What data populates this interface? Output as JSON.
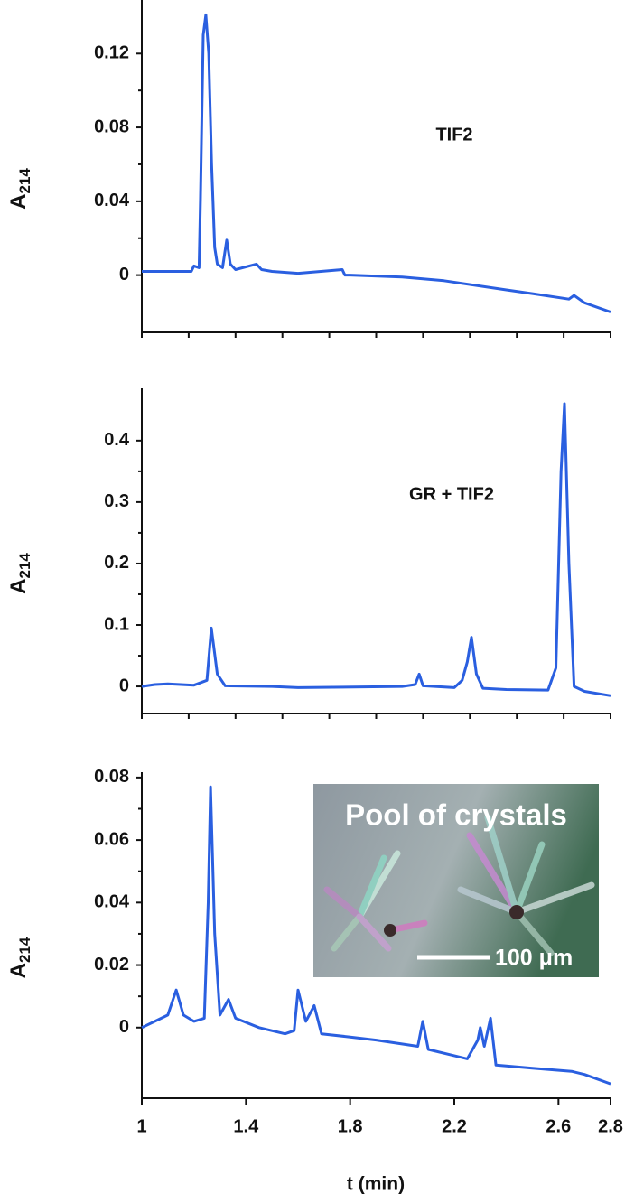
{
  "chart_data": [
    {
      "type": "line",
      "ylabel": "A",
      "ylabel_subscript": "214",
      "annotation": "TIF2",
      "xlim": [
        1,
        2.8
      ],
      "ylim": [
        -0.031,
        0.149
      ],
      "yticks": [
        0,
        0.04,
        0.08,
        0.12
      ],
      "x": [
        1.0,
        1.19,
        1.2,
        1.22,
        1.225,
        1.236,
        1.246,
        1.257,
        1.268,
        1.28,
        1.29,
        1.31,
        1.326,
        1.34,
        1.36,
        1.44,
        1.46,
        1.5,
        1.6,
        1.77,
        1.78,
        1.8,
        2.0,
        2.16,
        2.4,
        2.5,
        2.64,
        2.66,
        2.7,
        2.8
      ],
      "series": [
        {
          "color": "#2a5fe0",
          "values": [
            0.002,
            0.002,
            0.005,
            0.004,
            0.04,
            0.13,
            0.141,
            0.12,
            0.06,
            0.015,
            0.006,
            0.004,
            0.019,
            0.006,
            0.003,
            0.006,
            0.003,
            0.002,
            0.001,
            0.003,
            0.0,
            0.0,
            -0.001,
            -0.003,
            -0.008,
            -0.01,
            -0.013,
            -0.011,
            -0.015,
            -0.02
          ]
        }
      ]
    },
    {
      "type": "line",
      "ylabel": "A",
      "ylabel_subscript": "214",
      "annotation": "GR + TIF2",
      "xlim": [
        1,
        2.8
      ],
      "ylim": [
        -0.044,
        0.485
      ],
      "yticks": [
        0,
        0.1,
        0.2,
        0.3,
        0.4
      ],
      "x": [
        1.0,
        1.05,
        1.1,
        1.2,
        1.25,
        1.267,
        1.29,
        1.32,
        1.5,
        1.6,
        2.0,
        2.05,
        2.065,
        2.08,
        2.2,
        2.23,
        2.25,
        2.266,
        2.285,
        2.31,
        2.4,
        2.56,
        2.59,
        2.61,
        2.623,
        2.64,
        2.66,
        2.7,
        2.8
      ],
      "series": [
        {
          "color": "#2a5fe0",
          "values": [
            0.0,
            0.003,
            0.004,
            0.002,
            0.01,
            0.095,
            0.02,
            0.001,
            0.0,
            -0.002,
            0.0,
            0.003,
            0.02,
            0.001,
            -0.002,
            0.01,
            0.04,
            0.08,
            0.02,
            -0.003,
            -0.005,
            -0.006,
            0.03,
            0.35,
            0.46,
            0.2,
            0.0,
            -0.008,
            -0.015
          ]
        }
      ]
    },
    {
      "type": "line",
      "ylabel": "A",
      "ylabel_subscript": "214",
      "xlabel": "t (min)",
      "inset_title": "Pool of crystals",
      "inset_scale": "100 μm",
      "xlim": [
        1,
        2.8
      ],
      "xticks": [
        1,
        1.4,
        1.8,
        2.2,
        2.6,
        2.8
      ],
      "ylim": [
        -0.0226,
        0.0817
      ],
      "yticks": [
        0,
        0.02,
        0.04,
        0.06,
        0.08
      ],
      "x": [
        1.0,
        1.05,
        1.1,
        1.132,
        1.16,
        1.2,
        1.24,
        1.255,
        1.264,
        1.28,
        1.3,
        1.333,
        1.36,
        1.45,
        1.55,
        1.585,
        1.6,
        1.63,
        1.662,
        1.69,
        1.8,
        1.9,
        2.06,
        2.079,
        2.1,
        2.25,
        2.29,
        2.3,
        2.315,
        2.339,
        2.36,
        2.5,
        2.65,
        2.7,
        2.8
      ],
      "series": [
        {
          "color": "#2a5fe0",
          "values": [
            0.0,
            0.002,
            0.004,
            0.012,
            0.004,
            0.002,
            0.003,
            0.04,
            0.077,
            0.03,
            0.004,
            0.009,
            0.003,
            0.0,
            -0.002,
            -0.001,
            0.012,
            0.002,
            0.007,
            -0.002,
            -0.003,
            -0.004,
            -0.006,
            0.002,
            -0.007,
            -0.01,
            -0.004,
            0.0,
            -0.006,
            0.003,
            -0.012,
            -0.013,
            -0.014,
            -0.015,
            -0.018
          ]
        }
      ]
    }
  ]
}
